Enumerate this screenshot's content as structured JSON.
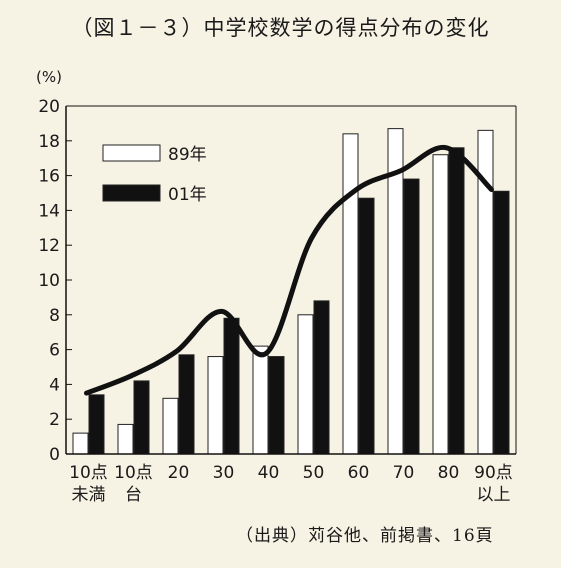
{
  "chart_data": {
    "type": "bar",
    "title": "（図１－３）中学校数学の得点分布の変化",
    "y_unit": "(%)",
    "ylim": [
      0,
      20
    ],
    "yticks": [
      0,
      2,
      4,
      6,
      8,
      10,
      12,
      14,
      16,
      18,
      20
    ],
    "categories": [
      {
        "line1": "10点",
        "line2": "未満"
      },
      {
        "line1": "10点",
        "line2": "台"
      },
      {
        "line1": "20",
        "line2": ""
      },
      {
        "line1": "30",
        "line2": ""
      },
      {
        "line1": "40",
        "line2": ""
      },
      {
        "line1": "50",
        "line2": ""
      },
      {
        "line1": "60",
        "line2": ""
      },
      {
        "line1": "70",
        "line2": ""
      },
      {
        "line1": "80",
        "line2": ""
      },
      {
        "line1": "90点",
        "line2": "以上"
      }
    ],
    "series": [
      {
        "name": "89年",
        "fill": "#ffffff",
        "values": [
          1.2,
          1.7,
          3.2,
          5.6,
          6.2,
          8.0,
          18.4,
          18.7,
          17.2,
          18.6
        ]
      },
      {
        "name": "01年",
        "fill": "#111111",
        "values": [
          3.4,
          4.2,
          5.7,
          7.8,
          5.6,
          8.8,
          14.7,
          15.8,
          17.6,
          15.1
        ]
      }
    ],
    "trend_line": [
      3.5,
      4.5,
      5.9,
      8.2,
      5.8,
      12.4,
      15.2,
      16.3,
      17.6,
      15.2
    ],
    "legend_position": "top-left",
    "grid": false
  },
  "source_note": "（出典）苅谷他、前掲書、16頁"
}
